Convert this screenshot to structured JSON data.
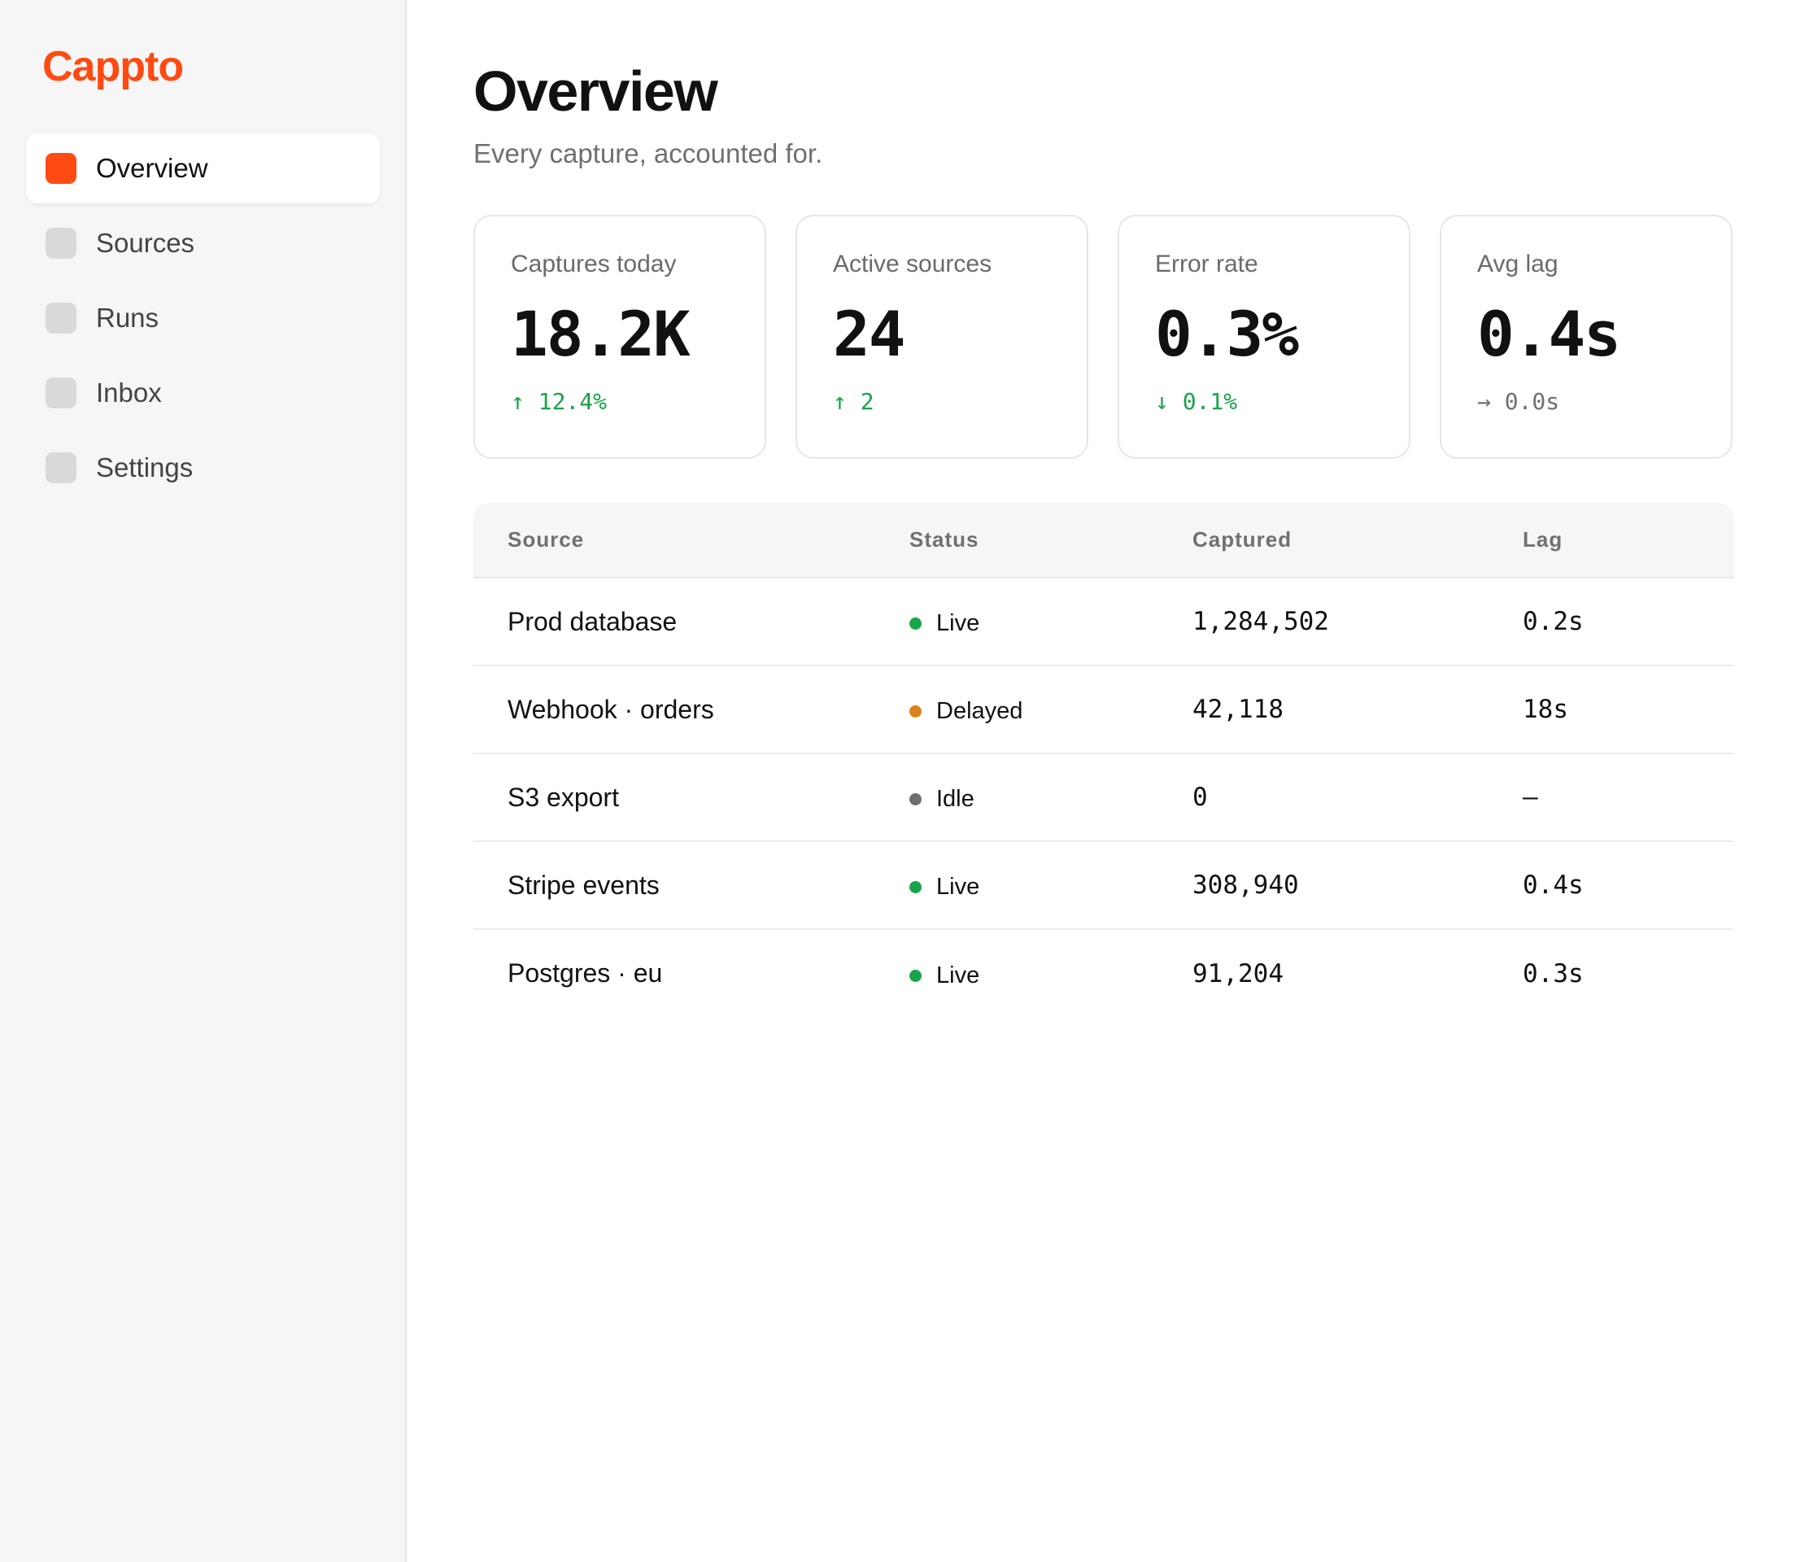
{
  "app": {
    "brand": "Cappto",
    "accent_color": "#ff4a12"
  },
  "sidebar": {
    "items": [
      {
        "label": "Overview",
        "active": true
      },
      {
        "label": "Sources",
        "active": false
      },
      {
        "label": "Runs",
        "active": false
      },
      {
        "label": "Inbox",
        "active": false
      },
      {
        "label": "Settings",
        "active": false
      }
    ]
  },
  "header": {
    "title": "Overview",
    "subtitle": "Every capture, accounted for."
  },
  "stats": [
    {
      "label": "Captures today",
      "value": "18.2K",
      "delta": "↑ 12.4%",
      "delta_color": "#19a34a"
    },
    {
      "label": "Active sources",
      "value": "24",
      "delta": "↑ 2",
      "delta_color": "#19a34a"
    },
    {
      "label": "Error rate",
      "value": "0.3%",
      "delta": "↓ 0.1%",
      "delta_color": "#19a34a"
    },
    {
      "label": "Avg lag",
      "value": "0.4s",
      "delta": "→ 0.0s",
      "delta_color": "#6f6f6f"
    }
  ],
  "table": {
    "columns": [
      "Source",
      "Status",
      "Captured",
      "Lag"
    ],
    "rows": [
      {
        "source": "Prod database",
        "status": "Live",
        "status_color": "#19a34a",
        "captured": "1,284,502",
        "lag": "0.2s"
      },
      {
        "source": "Webhook · orders",
        "status": "Delayed",
        "status_color": "#d9821e",
        "captured": "42,118",
        "lag": "18s"
      },
      {
        "source": "S3 export",
        "status": "Idle",
        "status_color": "#6f6f6f",
        "captured": "0",
        "lag": "—"
      },
      {
        "source": "Stripe events",
        "status": "Live",
        "status_color": "#19a34a",
        "captured": "308,940",
        "lag": "0.4s"
      },
      {
        "source": "Postgres · eu",
        "status": "Live",
        "status_color": "#19a34a",
        "captured": "91,204",
        "lag": "0.3s"
      }
    ]
  }
}
